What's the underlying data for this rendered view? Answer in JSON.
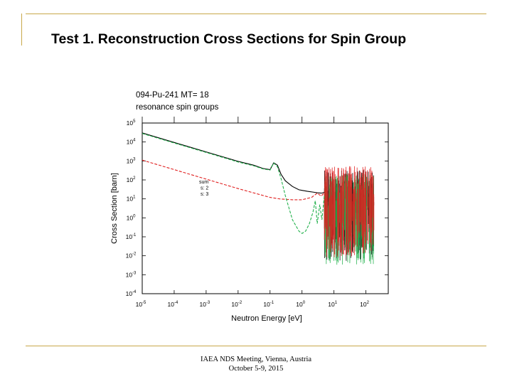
{
  "slide": {
    "title": "Test 1. Reconstruction Cross Sections for Spin Group",
    "footer_line1": "IAEA NDS Meeting, Vienna, Austria",
    "footer_line2": "October 5-9, 2015"
  },
  "colors": {
    "accent_lines": "#c8a84a",
    "sum": "#000000",
    "s2": "#e02020",
    "s3": "#22b14c"
  },
  "chart_data": {
    "type": "line",
    "title_line1": "094-Pu-241  MT=  18",
    "title_line2": "resonance spin groups",
    "xlabel": "Neutron Energy [eV]",
    "ylabel": "Cross Section [barn]",
    "x_scale": "log",
    "y_scale": "log",
    "xlim": [
      1e-05,
      500
    ],
    "ylim": [
      0.0001,
      100000.0
    ],
    "x_ticks": [
      {
        "value": 1e-05,
        "base": "10",
        "exp": "-5"
      },
      {
        "value": 0.0001,
        "base": "10",
        "exp": "-4"
      },
      {
        "value": 0.001,
        "base": "10",
        "exp": "-3"
      },
      {
        "value": 0.01,
        "base": "10",
        "exp": "-2"
      },
      {
        "value": 0.1,
        "base": "10",
        "exp": "-1"
      },
      {
        "value": 1,
        "base": "10",
        "exp": "0"
      },
      {
        "value": 10,
        "base": "10",
        "exp": "1"
      },
      {
        "value": 100,
        "base": "10",
        "exp": "2"
      }
    ],
    "y_ticks": [
      {
        "value": 100000.0,
        "base": "10",
        "exp": "5"
      },
      {
        "value": 10000.0,
        "base": "10",
        "exp": "4"
      },
      {
        "value": 1000.0,
        "base": "10",
        "exp": "3"
      },
      {
        "value": 100.0,
        "base": "10",
        "exp": "2"
      },
      {
        "value": 10.0,
        "base": "10",
        "exp": "1"
      },
      {
        "value": 1,
        "base": "10",
        "exp": "0"
      },
      {
        "value": 0.1,
        "base": "10",
        "exp": "-1"
      },
      {
        "value": 0.01,
        "base": "10",
        "exp": "-2"
      },
      {
        "value": 0.001,
        "base": "10",
        "exp": "-3"
      },
      {
        "value": 0.0001,
        "base": "10",
        "exp": "-4"
      }
    ],
    "grid": false,
    "legend_position": "center",
    "series": [
      {
        "name": "sum",
        "color": "#000000",
        "style": "solid",
        "x": [
          1e-05,
          0.0001,
          0.001,
          0.01,
          0.03,
          0.06,
          0.1,
          0.13,
          0.17,
          0.22,
          0.3,
          0.5,
          0.8,
          1,
          1.5,
          2.5,
          3,
          4,
          5
        ],
        "y": [
          30000,
          9500,
          3000,
          950,
          600,
          400,
          350,
          800,
          600,
          200,
          90,
          45,
          30,
          28,
          25,
          22,
          21,
          20,
          22
        ]
      },
      {
        "name": "s: 2",
        "color": "#e02020",
        "style": "dashed",
        "x": [
          1e-05,
          0.0001,
          0.001,
          0.01,
          0.1,
          0.2,
          0.5,
          1,
          2,
          3,
          4,
          5
        ],
        "y": [
          1100,
          350,
          110,
          35,
          12,
          10,
          9,
          9,
          12,
          20,
          14,
          22
        ]
      },
      {
        "name": "s: 3",
        "color": "#22b14c",
        "style": "dashed",
        "x": [
          1e-05,
          0.0001,
          0.001,
          0.01,
          0.03,
          0.06,
          0.1,
          0.13,
          0.17,
          0.22,
          0.3,
          0.5,
          0.8,
          1,
          1.3,
          1.7,
          2.2,
          2.6,
          3,
          3.6,
          4.2,
          5
        ],
        "y": [
          28000,
          8800,
          2800,
          880,
          560,
          380,
          330,
          780,
          500,
          120,
          15,
          0.8,
          0.2,
          0.15,
          0.2,
          0.5,
          2,
          8,
          0.5,
          5,
          0.8,
          15
        ]
      }
    ]
  }
}
